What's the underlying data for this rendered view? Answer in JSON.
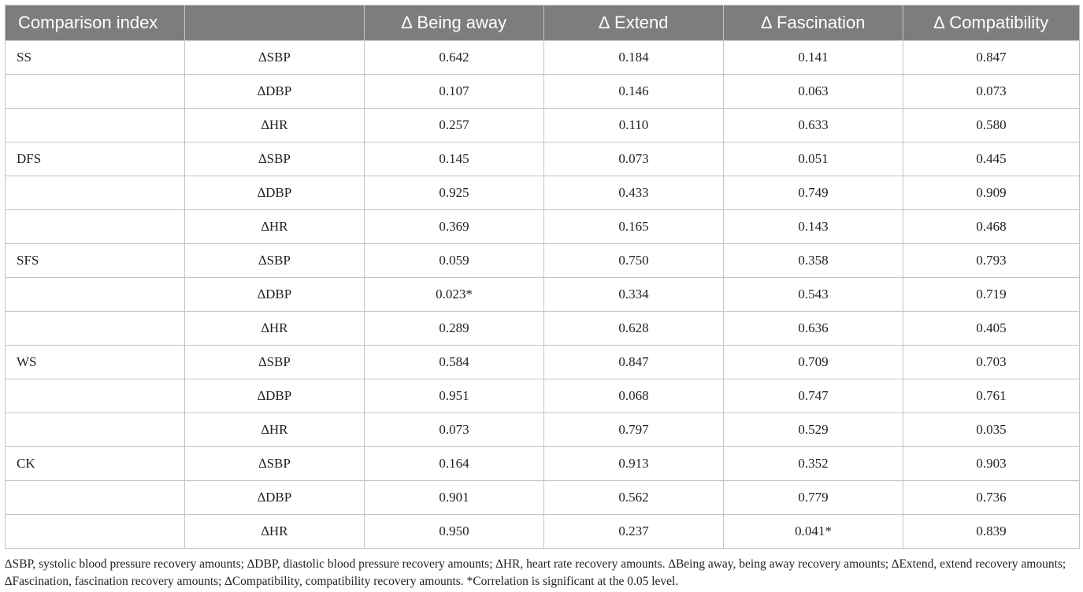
{
  "table": {
    "headers": [
      "Comparison index",
      "",
      "∆ Being away",
      "∆ Extend",
      "∆ Fascination",
      "∆ Compatibility"
    ],
    "rows": [
      {
        "group": "SS",
        "index": "∆SBP",
        "values": [
          "0.642",
          "0.184",
          "0.141",
          "0.847"
        ]
      },
      {
        "group": "",
        "index": "∆DBP",
        "values": [
          "0.107",
          "0.146",
          "0.063",
          "0.073"
        ]
      },
      {
        "group": "",
        "index": "∆HR",
        "values": [
          "0.257",
          "0.110",
          "0.633",
          "0.580"
        ]
      },
      {
        "group": "DFS",
        "index": "∆SBP",
        "values": [
          "0.145",
          "0.073",
          "0.051",
          "0.445"
        ]
      },
      {
        "group": "",
        "index": "∆DBP",
        "values": [
          "0.925",
          "0.433",
          "0.749",
          "0.909"
        ]
      },
      {
        "group": "",
        "index": "∆HR",
        "values": [
          "0.369",
          "0.165",
          "0.143",
          "0.468"
        ]
      },
      {
        "group": "SFS",
        "index": "∆SBP",
        "values": [
          "0.059",
          "0.750",
          "0.358",
          "0.793"
        ]
      },
      {
        "group": "",
        "index": "∆DBP",
        "values": [
          "0.023*",
          "0.334",
          "0.543",
          "0.719"
        ]
      },
      {
        "group": "",
        "index": "∆HR",
        "values": [
          "0.289",
          "0.628",
          "0.636",
          "0.405"
        ]
      },
      {
        "group": "WS",
        "index": "∆SBP",
        "values": [
          "0.584",
          "0.847",
          "0.709",
          "0.703"
        ]
      },
      {
        "group": "",
        "index": "∆DBP",
        "values": [
          "0.951",
          "0.068",
          "0.747",
          "0.761"
        ]
      },
      {
        "group": "",
        "index": "∆HR",
        "values": [
          "0.073",
          "0.797",
          "0.529",
          "0.035"
        ]
      },
      {
        "group": "CK",
        "index": "∆SBP",
        "values": [
          "0.164",
          "0.913",
          "0.352",
          "0.903"
        ]
      },
      {
        "group": "",
        "index": "∆DBP",
        "values": [
          "0.901",
          "0.562",
          "0.779",
          "0.736"
        ]
      },
      {
        "group": "",
        "index": "∆HR",
        "values": [
          "0.950",
          "0.237",
          "0.041*",
          "0.839"
        ]
      }
    ]
  },
  "footnote": "∆SBP, systolic blood pressure recovery amounts; ∆DBP, diastolic blood pressure recovery amounts; ∆HR, heart rate recovery amounts. ∆Being away, being away recovery amounts; ∆Extend, extend recovery amounts; ∆Fascination, fascination recovery amounts; ∆Compatibility, compatibility recovery amounts. *Correlation is significant at the 0.05 level."
}
